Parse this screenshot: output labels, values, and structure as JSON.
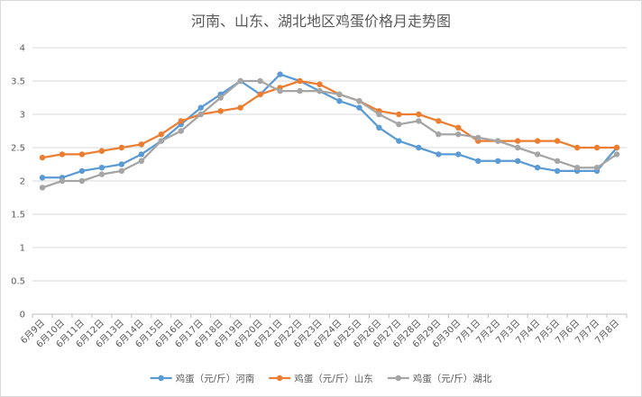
{
  "chart_data": {
    "type": "line",
    "title": "河南、山东、湖北地区鸡蛋价格月走势图",
    "xlabel": "",
    "ylabel": "",
    "ylim": [
      0,
      4
    ],
    "yticks": [
      "0",
      "0.5",
      "1",
      "1.5",
      "2",
      "2.5",
      "3",
      "3.5",
      "4"
    ],
    "grid": true,
    "legend_position": "bottom",
    "categories": [
      "6月9日",
      "6月10日",
      "6月11日",
      "6月12日",
      "6月13日",
      "6月14日",
      "6月15日",
      "6月16日",
      "6月17日",
      "6月18日",
      "6月19日",
      "6月20日",
      "6月21日",
      "6月22日",
      "6月23日",
      "6月24日",
      "6月25日",
      "6月26日",
      "6月27日",
      "6月28日",
      "6月29日",
      "6月30日",
      "7月1日",
      "7月2日",
      "7月3日",
      "7月4日",
      "7月5日",
      "7月6日",
      "7月7日",
      "7月8日"
    ],
    "series": [
      {
        "name": "鸡蛋（元/斤）河南",
        "color": "#5b9bd5",
        "values": [
          2.05,
          2.05,
          2.15,
          2.2,
          2.25,
          2.4,
          2.6,
          2.85,
          3.1,
          3.3,
          3.5,
          3.3,
          3.6,
          3.5,
          3.35,
          3.2,
          3.1,
          2.8,
          2.6,
          2.5,
          2.4,
          2.4,
          2.3,
          2.3,
          2.3,
          2.2,
          2.15,
          2.15,
          2.15,
          2.5
        ]
      },
      {
        "name": "鸡蛋（元/斤）山东",
        "color": "#ed7d31",
        "values": [
          2.35,
          2.4,
          2.4,
          2.45,
          2.5,
          2.55,
          2.7,
          2.9,
          3.0,
          3.05,
          3.1,
          3.3,
          3.4,
          3.5,
          3.45,
          3.3,
          3.2,
          3.05,
          3.0,
          3.0,
          2.9,
          2.8,
          2.6,
          2.6,
          2.6,
          2.6,
          2.6,
          2.5,
          2.5,
          2.5
        ]
      },
      {
        "name": "鸡蛋（元/斤）湖北",
        "color": "#a5a5a5",
        "values": [
          1.9,
          2.0,
          2.0,
          2.1,
          2.15,
          2.3,
          2.6,
          2.75,
          3.0,
          3.25,
          3.5,
          3.5,
          3.35,
          3.35,
          3.35,
          3.3,
          3.2,
          3.0,
          2.85,
          2.9,
          2.7,
          2.7,
          2.65,
          2.6,
          2.5,
          2.4,
          2.3,
          2.2,
          2.2,
          2.4
        ]
      }
    ]
  }
}
